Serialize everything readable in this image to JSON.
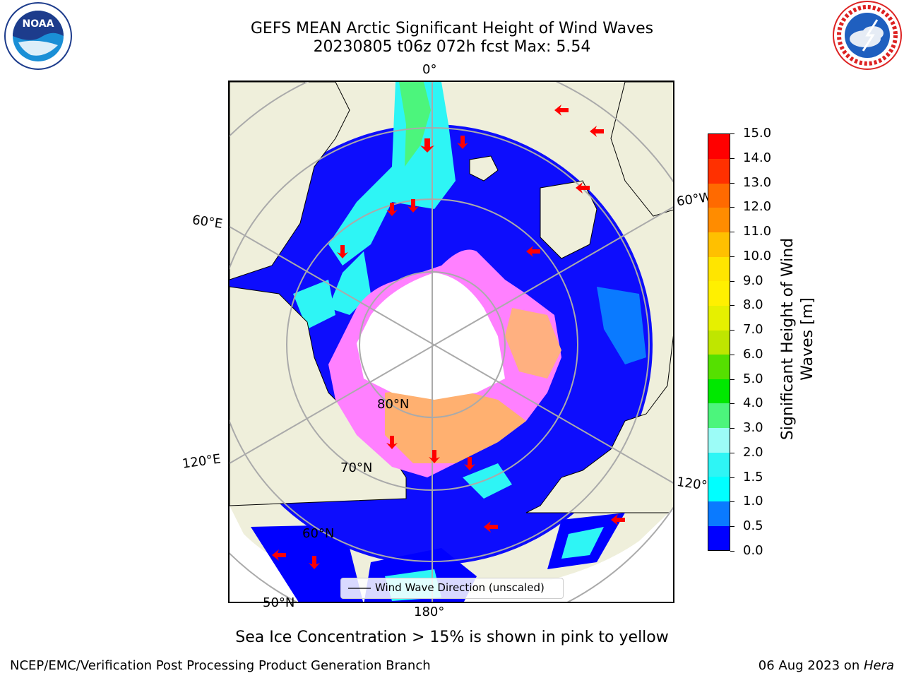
{
  "header": {
    "title_line1": "GEFS MEAN Arctic Significant Height of Wind Waves",
    "title_line2": "20230805 t06z 072h fcst   Max: 5.54"
  },
  "logos": {
    "left": {
      "name": "noaa-logo",
      "text": "NOAA",
      "ring_text": "NATIONAL OCEANIC AND ATMOSPHERIC ADMINISTRATION · U.S. DEPARTMENT OF COMMERCE"
    },
    "right": {
      "name": "nws-logo",
      "ring_text": "NATIONAL WEATHER SERVICE"
    }
  },
  "map": {
    "lon_labels": {
      "top": "0°",
      "left_upper": "60°E",
      "left_lower": "120°E",
      "bottom": "180°",
      "right_upper": "60°W",
      "right_lower": "120°W"
    },
    "lat_labels": {
      "lat80": "80°N",
      "lat70": "70°N",
      "lat60": "60°N",
      "lat50": "50°N"
    },
    "legend_label": "Wind Wave Direction (unscaled)"
  },
  "colorbar": {
    "title": "Significant Height of Wind Waves [m]",
    "ticks": [
      "0.0",
      "0.5",
      "1.0",
      "1.5",
      "2.0",
      "3.0",
      "4.0",
      "5.0",
      "6.0",
      "7.0",
      "8.0",
      "9.0",
      "10.0",
      "11.0",
      "12.0",
      "13.0",
      "14.0",
      "15.0"
    ],
    "colors": [
      "#0000ff",
      "#0a7aff",
      "#00ffff",
      "#2ef5f5",
      "#9cfcf7",
      "#4cf57c",
      "#00e800",
      "#55e000",
      "#bfe600",
      "#e6f000",
      "#fff000",
      "#ffe500",
      "#ffc000",
      "#ff8c00",
      "#ff6a00",
      "#ff3000",
      "#ff0000"
    ]
  },
  "caption": "Sea Ice Concentration > 15% is shown in pink to yellow",
  "footer": {
    "left": "NCEP/EMC/Verification Post Processing Product Generation Branch",
    "right_date": "06 Aug 2023 on ",
    "right_host": "Hera"
  }
}
